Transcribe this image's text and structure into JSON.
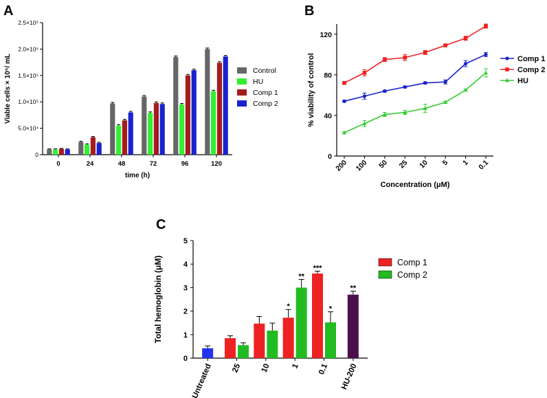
{
  "panel_labels": {
    "A": "A",
    "B": "B",
    "C": "C"
  },
  "chart_data": [
    {
      "panel": "A",
      "type": "bar",
      "title": "",
      "xlabel": "time (h)",
      "ylabel": "Viable cells × 10⁵/ mL",
      "categories": [
        "0",
        "24",
        "48",
        "72",
        "96",
        "120"
      ],
      "ylim": [
        0,
        250000
      ],
      "ytick_labels": [
        "0",
        "5.0×10⁴",
        "1.0×10⁵",
        "1.5×10⁵",
        "2.0×10⁵",
        "2.5×10⁵"
      ],
      "legend_position": "right",
      "series": [
        {
          "name": "Control",
          "color": "#666666",
          "values": [
            10000,
            24000,
            97000,
            110000,
            185000,
            200000
          ],
          "errors": [
            1000,
            1500,
            2000,
            2000,
            2000,
            2000
          ]
        },
        {
          "name": "HU",
          "color": "#33ee33",
          "values": [
            10000,
            19000,
            55000,
            79000,
            95000,
            120000
          ],
          "errors": [
            1000,
            1500,
            2000,
            2000,
            2000,
            2000
          ]
        },
        {
          "name": "Comp 1",
          "color": "#a51c1c",
          "values": [
            11000,
            33000,
            65000,
            98000,
            150000,
            174000
          ],
          "errors": [
            1000,
            1500,
            2000,
            2000,
            2000,
            2000
          ]
        },
        {
          "name": "Comp 2",
          "color": "#1a22cc",
          "values": [
            10000,
            22000,
            80000,
            96000,
            160000,
            186000
          ],
          "errors": [
            1000,
            1500,
            2000,
            2000,
            2000,
            2000
          ]
        }
      ]
    },
    {
      "panel": "B",
      "type": "line",
      "title": "",
      "xlabel": "Concentration (μM)",
      "ylabel": "% viability of control",
      "x": [
        "200",
        "100",
        "50",
        "25",
        "10",
        "5",
        "1",
        "0.1"
      ],
      "ylim": [
        0,
        130
      ],
      "yticks": [
        0,
        40,
        80,
        120
      ],
      "legend_position": "right",
      "series": [
        {
          "name": "Comp 1",
          "color": "#1a22cc",
          "marker": "circle",
          "values": [
            54,
            59,
            64,
            68,
            72,
            73,
            91,
            100
          ],
          "errors": [
            1,
            3,
            1,
            1,
            1,
            2,
            3,
            2
          ]
        },
        {
          "name": "Comp 2",
          "color": "#ee2222",
          "marker": "square",
          "values": [
            72,
            82,
            95,
            97,
            102,
            109,
            116,
            128
          ],
          "errors": [
            1,
            3,
            2,
            3,
            2,
            1,
            2,
            2
          ]
        },
        {
          "name": "HU",
          "color": "#33cc33",
          "marker": "triangle",
          "values": [
            23,
            32,
            41,
            43,
            47,
            53,
            65,
            82
          ],
          "errors": [
            1,
            3,
            2,
            2,
            4,
            1,
            1,
            4
          ]
        }
      ]
    },
    {
      "panel": "C",
      "type": "bar",
      "title": "",
      "xlabel": "",
      "ylabel": "Total hemoglobin (μM)",
      "ylim": [
        0,
        5
      ],
      "yticks": [
        0,
        1,
        2,
        3,
        4,
        5
      ],
      "categories": [
        "Untreated",
        "25",
        "10",
        "1",
        "0.1",
        "HU-200"
      ],
      "legend_position": "right",
      "legend": [
        {
          "name": "Comp 1",
          "color": "#ee2222"
        },
        {
          "name": "Comp 2",
          "color": "#22bb22"
        }
      ],
      "bars": [
        {
          "category": "Untreated",
          "series": "",
          "color": "#2233ee",
          "value": 0.42,
          "error": 0.1,
          "significance": ""
        },
        {
          "category": "25",
          "series": "Comp 1",
          "color": "#ee2222",
          "value": 0.85,
          "error": 0.1,
          "significance": ""
        },
        {
          "category": "25",
          "series": "Comp 2",
          "color": "#22bb22",
          "value": 0.55,
          "error": 0.1,
          "significance": ""
        },
        {
          "category": "10",
          "series": "Comp 1",
          "color": "#ee2222",
          "value": 1.47,
          "error": 0.3,
          "significance": ""
        },
        {
          "category": "10",
          "series": "Comp 2",
          "color": "#22bb22",
          "value": 1.17,
          "error": 0.32,
          "significance": ""
        },
        {
          "category": "1",
          "series": "Comp 1",
          "color": "#ee2222",
          "value": 1.72,
          "error": 0.35,
          "significance": "*"
        },
        {
          "category": "1",
          "series": "Comp 2",
          "color": "#22bb22",
          "value": 3.0,
          "error": 0.35,
          "significance": "**"
        },
        {
          "category": "0.1",
          "series": "Comp 1",
          "color": "#ee2222",
          "value": 3.6,
          "error": 0.1,
          "significance": "***"
        },
        {
          "category": "0.1",
          "series": "Comp 2",
          "color": "#22bb22",
          "value": 1.52,
          "error": 0.45,
          "significance": "*"
        },
        {
          "category": "HU-200",
          "series": "",
          "color": "#4b0f4b",
          "value": 2.7,
          "error": 0.15,
          "significance": "**"
        }
      ]
    }
  ]
}
